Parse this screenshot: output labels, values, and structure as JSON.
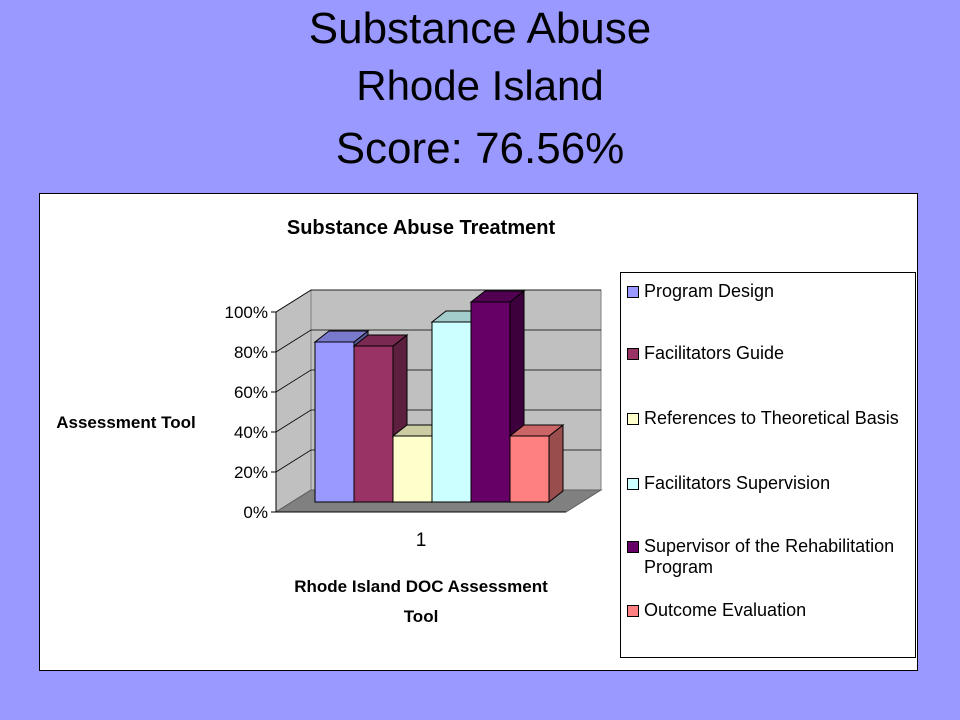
{
  "slide": {
    "title_line1": "Substance Abuse",
    "title_line2": "Rhode Island",
    "score": "Score: 76.56%"
  },
  "colors": {
    "background": "#9999ff",
    "wall": "#c0c0c0",
    "floor": "#808080"
  },
  "chart_data": {
    "type": "bar",
    "title": "Substance Abuse Treatment",
    "xlabel": "Rhode Island DOC Assessment Tool",
    "ylabel": "Assessment Tool",
    "categories": [
      "1"
    ],
    "ylim": [
      0,
      100
    ],
    "yticks": [
      "0%",
      "20%",
      "40%",
      "60%",
      "80%",
      "100%"
    ],
    "legend_position": "right",
    "series": [
      {
        "name": "Program Design",
        "values": [
          80
        ],
        "color": "#9999ff"
      },
      {
        "name": "Facilitators Guide",
        "values": [
          78
        ],
        "color": "#993366"
      },
      {
        "name": "References to Theoretical Basis",
        "values": [
          33
        ],
        "color": "#ffffcc"
      },
      {
        "name": "Facilitators Supervision",
        "values": [
          90
        ],
        "color": "#ccffff"
      },
      {
        "name": "Supervisor of the Rehabilitation Program",
        "values": [
          100
        ],
        "color": "#660066"
      },
      {
        "name": "Outcome Evaluation",
        "values": [
          33
        ],
        "color": "#ff8080"
      }
    ]
  }
}
